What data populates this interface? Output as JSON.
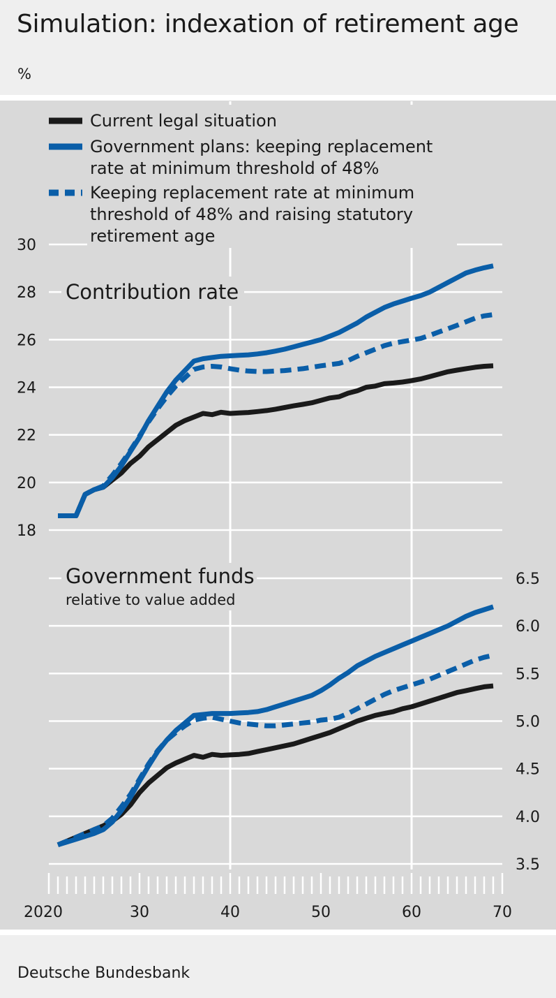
{
  "title": "Simulation: indexation of retirement age",
  "unit_label": "%",
  "source": "Deutsche Bundesbank",
  "colors": {
    "black": "#1a1a1a",
    "blue": "#0a5ea8",
    "grid": "#ffffff",
    "plot_bg": "#d9d9d9"
  },
  "chart_data": [
    {
      "type": "line",
      "title": "Contribution rate",
      "subtitle": "",
      "xlabel": "",
      "ylabel": "%",
      "xlim": [
        2020,
        2070
      ],
      "ylim": [
        18,
        30
      ],
      "y_ticks": [
        18,
        20,
        22,
        24,
        26,
        28,
        30
      ],
      "y_tick_labels": [
        "18",
        "20",
        "22",
        "24",
        "26",
        "28",
        "30"
      ],
      "legend": [
        {
          "label": "Current legal situation",
          "style": "solid",
          "color": "#1a1a1a"
        },
        {
          "label": "Government plans: keeping replacement rate at minimum threshold of 48%",
          "lines": [
            "Government plans: keeping replacement",
            "rate at minimum threshold of 48%"
          ],
          "style": "solid",
          "color": "#0a5ea8"
        },
        {
          "label": "Keeping replacement rate at minimum threshold of 48% and raising statutory retirement age",
          "lines": [
            "Keeping replacement rate at minimum",
            "threshold of 48% and raising statutory",
            "retirement age"
          ],
          "style": "dashed",
          "color": "#0a5ea8"
        }
      ],
      "x": [
        2021,
        2022,
        2023,
        2024,
        2025,
        2026,
        2027,
        2028,
        2029,
        2030,
        2031,
        2032,
        2033,
        2034,
        2035,
        2036,
        2037,
        2038,
        2039,
        2040,
        2041,
        2042,
        2043,
        2044,
        2045,
        2046,
        2047,
        2048,
        2049,
        2050,
        2051,
        2052,
        2053,
        2054,
        2055,
        2056,
        2057,
        2058,
        2059,
        2060,
        2061,
        2062,
        2063,
        2064,
        2065,
        2066,
        2067,
        2068,
        2069
      ],
      "series": [
        {
          "name": "Current legal situation",
          "style": "solid",
          "color": "#1a1a1a",
          "values": [
            18.6,
            18.6,
            18.6,
            19.5,
            19.7,
            19.8,
            20.1,
            20.4,
            20.8,
            21.1,
            21.5,
            21.8,
            22.1,
            22.4,
            22.6,
            22.75,
            22.9,
            22.85,
            22.95,
            22.9,
            22.92,
            22.94,
            22.98,
            23.02,
            23.08,
            23.15,
            23.22,
            23.28,
            23.35,
            23.45,
            23.55,
            23.6,
            23.75,
            23.85,
            24.0,
            24.05,
            24.15,
            24.18,
            24.22,
            24.28,
            24.35,
            24.45,
            24.55,
            24.65,
            24.72,
            24.78,
            24.84,
            24.88,
            24.9
          ]
        },
        {
          "name": "Government plans: keeping replacement rate at minimum threshold of 48%",
          "style": "solid",
          "color": "#0a5ea8",
          "values": [
            18.6,
            18.6,
            18.6,
            19.5,
            19.7,
            19.8,
            20.2,
            20.7,
            21.3,
            21.9,
            22.6,
            23.2,
            23.8,
            24.3,
            24.7,
            25.1,
            25.2,
            25.25,
            25.3,
            25.32,
            25.34,
            25.36,
            25.4,
            25.45,
            25.52,
            25.6,
            25.7,
            25.8,
            25.9,
            26.0,
            26.15,
            26.3,
            26.5,
            26.7,
            26.95,
            27.15,
            27.35,
            27.5,
            27.62,
            27.74,
            27.85,
            28.0,
            28.2,
            28.4,
            28.6,
            28.8,
            28.92,
            29.02,
            29.1
          ]
        },
        {
          "name": "Keeping replacement rate at minimum threshold of 48% and raising statutory retirement age",
          "style": "dashed",
          "color": "#0a5ea8",
          "values": [
            18.6,
            18.6,
            18.6,
            19.5,
            19.7,
            19.85,
            20.3,
            20.8,
            21.35,
            21.95,
            22.55,
            23.1,
            23.6,
            24.05,
            24.4,
            24.75,
            24.85,
            24.88,
            24.85,
            24.78,
            24.72,
            24.68,
            24.66,
            24.66,
            24.68,
            24.7,
            24.74,
            24.78,
            24.84,
            24.9,
            24.95,
            25.0,
            25.12,
            25.3,
            25.45,
            25.6,
            25.75,
            25.85,
            25.92,
            25.98,
            26.05,
            26.18,
            26.32,
            26.46,
            26.6,
            26.75,
            26.9,
            27.0,
            27.05
          ]
        }
      ]
    },
    {
      "type": "line",
      "title": "Government funds",
      "subtitle": "relative to value added",
      "xlabel": "",
      "ylabel": "%",
      "xlim": [
        2020,
        2070
      ],
      "ylim": [
        3.5,
        6.5
      ],
      "y_ticks": [
        3.5,
        4.0,
        4.5,
        5.0,
        5.5,
        6.0,
        6.5
      ],
      "y_tick_labels": [
        "3.5",
        "4.0",
        "4.5",
        "5.0",
        "5.5",
        "6.0",
        "6.5"
      ],
      "x_tick_labels": [
        {
          "value": 2020,
          "label": "2020"
        },
        {
          "value": 2030,
          "label": "30"
        },
        {
          "value": 2040,
          "label": "40"
        },
        {
          "value": 2050,
          "label": "50"
        },
        {
          "value": 2060,
          "label": "60"
        },
        {
          "value": 2070,
          "label": "70"
        }
      ],
      "x": [
        2021,
        2022,
        2023,
        2024,
        2025,
        2026,
        2027,
        2028,
        2029,
        2030,
        2031,
        2032,
        2033,
        2034,
        2035,
        2036,
        2037,
        2038,
        2039,
        2040,
        2041,
        2042,
        2043,
        2044,
        2045,
        2046,
        2047,
        2048,
        2049,
        2050,
        2051,
        2052,
        2053,
        2054,
        2055,
        2056,
        2057,
        2058,
        2059,
        2060,
        2061,
        2062,
        2063,
        2064,
        2065,
        2066,
        2067,
        2068,
        2069
      ],
      "series": [
        {
          "name": "Current legal situation",
          "style": "solid",
          "color": "#1a1a1a",
          "values": [
            3.7,
            3.74,
            3.78,
            3.82,
            3.86,
            3.9,
            3.95,
            4.02,
            4.12,
            4.25,
            4.35,
            4.43,
            4.51,
            4.56,
            4.6,
            4.64,
            4.62,
            4.65,
            4.64,
            4.645,
            4.65,
            4.66,
            4.68,
            4.7,
            4.72,
            4.74,
            4.76,
            4.79,
            4.82,
            4.85,
            4.88,
            4.92,
            4.96,
            5.0,
            5.03,
            5.06,
            5.08,
            5.1,
            5.13,
            5.15,
            5.18,
            5.21,
            5.24,
            5.27,
            5.3,
            5.32,
            5.34,
            5.36,
            5.37
          ]
        },
        {
          "name": "Government plans: keeping replacement rate at minimum threshold of 48%",
          "style": "solid",
          "color": "#0a5ea8",
          "values": [
            3.7,
            3.73,
            3.76,
            3.79,
            3.82,
            3.86,
            3.94,
            4.06,
            4.2,
            4.37,
            4.53,
            4.68,
            4.8,
            4.9,
            4.98,
            5.06,
            5.07,
            5.08,
            5.08,
            5.08,
            5.085,
            5.09,
            5.1,
            5.12,
            5.15,
            5.18,
            5.21,
            5.24,
            5.27,
            5.32,
            5.38,
            5.45,
            5.51,
            5.58,
            5.63,
            5.68,
            5.72,
            5.76,
            5.8,
            5.84,
            5.88,
            5.92,
            5.96,
            6.0,
            6.05,
            6.1,
            6.14,
            6.17,
            6.2
          ]
        },
        {
          "name": "Keeping replacement rate at minimum threshold of 48% and raising statutory retirement age",
          "style": "dashed",
          "color": "#0a5ea8",
          "values": [
            3.7,
            3.74,
            3.78,
            3.82,
            3.86,
            3.9,
            3.98,
            4.1,
            4.23,
            4.39,
            4.55,
            4.69,
            4.8,
            4.88,
            4.95,
            5.01,
            5.03,
            5.04,
            5.02,
            5.0,
            4.98,
            4.97,
            4.96,
            4.95,
            4.95,
            4.96,
            4.97,
            4.98,
            4.99,
            5.01,
            5.02,
            5.04,
            5.08,
            5.13,
            5.18,
            5.23,
            5.28,
            5.32,
            5.35,
            5.38,
            5.41,
            5.44,
            5.48,
            5.52,
            5.56,
            5.6,
            5.64,
            5.67,
            5.69
          ]
        }
      ]
    }
  ]
}
